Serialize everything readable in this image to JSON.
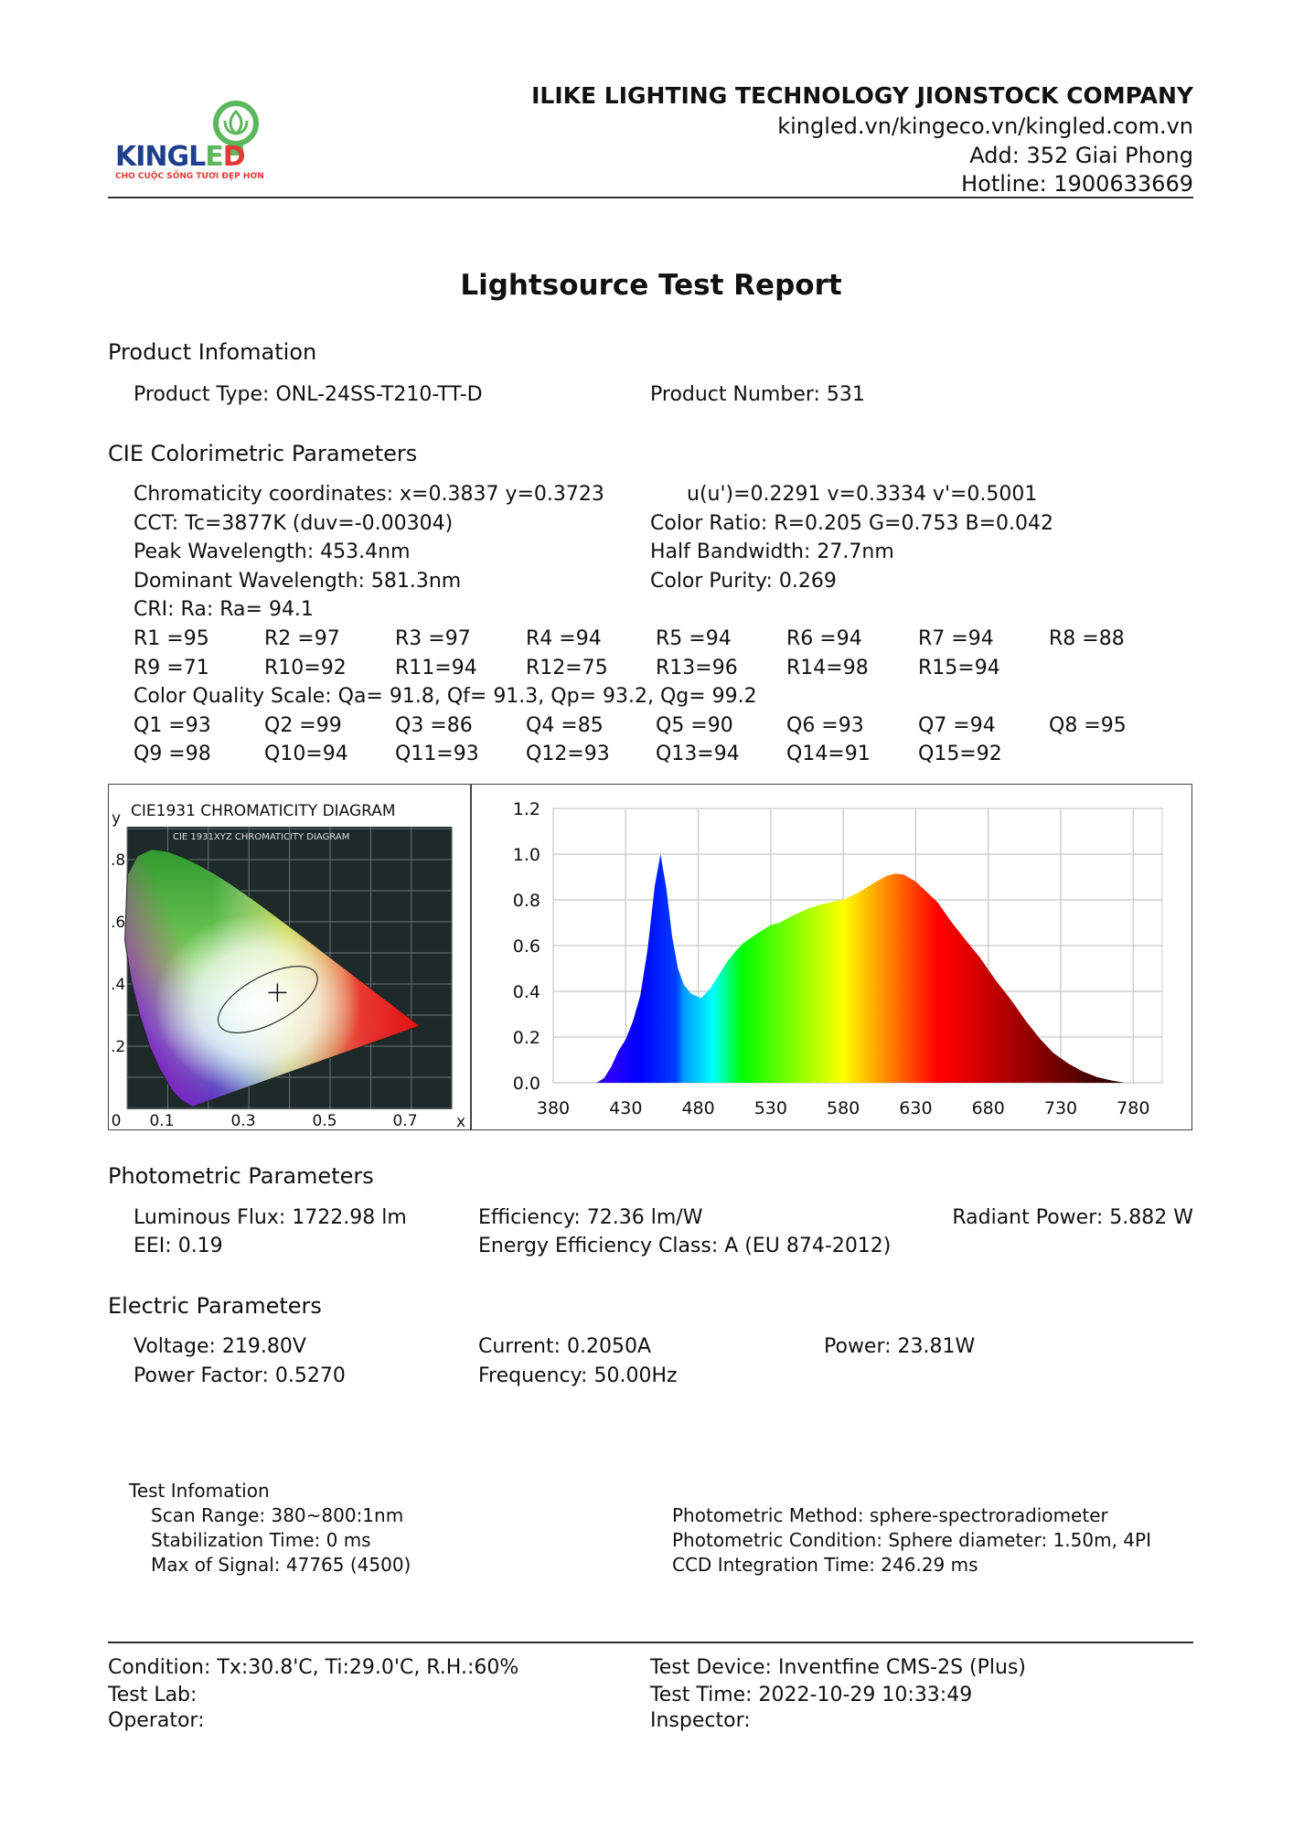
{
  "header": {
    "logo": {
      "brand": "KINGLED",
      "tagline": "CHO CUỘC SỐNG TƯƠI ĐẸP HƠN",
      "brand_color": "#1f3f8f",
      "accent_color": "#e53935",
      "bulb_color": "#5cb85c"
    },
    "company": "ILIKE LIGHTING TECHNOLOGY JIONSTOCK COMPANY",
    "websites": "kingled.vn/kingeco.vn/kingled.com.vn",
    "address": "Add: 352 Giai Phong",
    "hotline": "Hotline: 1900633669"
  },
  "title": "Lightsource Test Report",
  "product": {
    "heading": "Product Infomation",
    "type": "Product Type: ONL-24SS-T210-TT-D",
    "number": "Product Number: 531"
  },
  "cie": {
    "heading": "CIE Colorimetric Parameters",
    "chromaticity": "Chromaticity coordinates: x=0.3837 y=0.3723",
    "uv": "u(u')=0.2291 v=0.3334 v'=0.5001",
    "cct": "CCT: Tc=3877K (duv=-0.00304)",
    "color_ratio": "Color Ratio: R=0.205  G=0.753  B=0.042",
    "peak": "Peak Wavelength: 453.4nm",
    "half_bandwidth": "Half Bandwidth: 27.7nm",
    "dominant": "Dominant Wavelength: 581.3nm",
    "purity": "Color Purity: 0.269",
    "cri": "CRI: Ra: Ra= 94.1",
    "r_row1": [
      "R1 =95",
      "R2 =97",
      "R3 =97",
      "R4 =94",
      "R5 =94",
      "R6 =94",
      "R7 =94",
      "R8 =88"
    ],
    "r_row2": [
      "R9 =71",
      "R10=92",
      "R11=94",
      "R12=75",
      "R13=96",
      "R14=98",
      "R15=94"
    ],
    "cqs": "Color Quality Scale: Qa= 91.8, Qf= 91.3, Qp= 93.2, Qg= 99.2",
    "q_row1": [
      "Q1 =93",
      "Q2 =99",
      "Q3 =86",
      "Q4 =85",
      "Q5 =90",
      "Q6 =93",
      "Q7 =94",
      "Q8 =95"
    ],
    "q_row2": [
      "Q9 =98",
      "Q10=94",
      "Q11=93",
      "Q12=93",
      "Q13=94",
      "Q14=91",
      "Q15=92"
    ]
  },
  "cie_diagram": {
    "title": "CIE1931 CHROMATICITY DIAGRAM",
    "inner_title": "CIE 1931XYZ CHROMATICITY DIAGRAM",
    "y_label": "y",
    "x_label": "x",
    "y_ticks": [
      ".8",
      ".6",
      ".4",
      ".2"
    ],
    "x_ticks": [
      "0",
      "0.1",
      "0.3",
      "0.5",
      "0.7"
    ],
    "point": {
      "x": 0.3837,
      "y": 0.3723
    }
  },
  "chart_data": {
    "type": "area",
    "title": "",
    "xlabel": "",
    "ylabel": "",
    "xlim": [
      380,
      800
    ],
    "ylim": [
      0,
      1.2
    ],
    "grid": true,
    "x_ticks": [
      "380",
      "430",
      "480",
      "530",
      "580",
      "630",
      "680",
      "730",
      "780"
    ],
    "y_ticks": [
      "1.2",
      "1.0",
      "0.8",
      "0.6",
      "0.4",
      "0.2",
      "0.0"
    ],
    "fill": "spectral-rainbow",
    "x": [
      380,
      405,
      410,
      415,
      420,
      425,
      430,
      435,
      440,
      445,
      450,
      454,
      458,
      462,
      466,
      470,
      475,
      482,
      488,
      495,
      500,
      505,
      511,
      520,
      530,
      536,
      545,
      555,
      565,
      575,
      580,
      590,
      600,
      610,
      616,
      622,
      630,
      635,
      640,
      645,
      655,
      665,
      674,
      685,
      696,
      706,
      716,
      725,
      735,
      745,
      755,
      765,
      774,
      780,
      800
    ],
    "values": [
      0,
      0,
      0,
      0.02,
      0.07,
      0.14,
      0.19,
      0.27,
      0.38,
      0.58,
      0.86,
      1.0,
      0.85,
      0.64,
      0.5,
      0.43,
      0.39,
      0.37,
      0.41,
      0.48,
      0.53,
      0.57,
      0.61,
      0.65,
      0.69,
      0.7,
      0.73,
      0.76,
      0.78,
      0.795,
      0.8,
      0.83,
      0.87,
      0.905,
      0.915,
      0.91,
      0.88,
      0.85,
      0.82,
      0.79,
      0.7,
      0.62,
      0.55,
      0.45,
      0.36,
      0.27,
      0.19,
      0.13,
      0.085,
      0.05,
      0.025,
      0.01,
      0.0,
      0,
      0
    ]
  },
  "photometric": {
    "heading": "Photometric Parameters",
    "flux": "Luminous Flux: 1722.98 lm",
    "efficiency": "Efficiency: 72.36 lm/W",
    "radiant": "Radiant Power: 5.882 W",
    "eei": "EEI:  0.19",
    "class": "Energy Efficiency Class: A (EU 874-2012)"
  },
  "electric": {
    "heading": "Electric Parameters",
    "voltage": "Voltage: 219.80V",
    "current": "Current: 0.2050A",
    "power": "Power: 23.81W",
    "pf": "Power Factor: 0.5270",
    "frequency": "Frequency: 50.00Hz"
  },
  "test_info": {
    "heading": "Test Infomation",
    "scan": "Scan Range: 380~800:1nm",
    "stabilization": "Stabilization Time: 0 ms",
    "max_signal": "Max of Signal: 47765 (4500)",
    "method": "Photometric Method: sphere-spectroradiometer",
    "condition": "Photometric Condition: Sphere diameter: 1.50m, 4PI",
    "ccd": "CCD Integration Time: 246.29 ms"
  },
  "footer": {
    "condition": "Condition: Tx:30.8'C, Ti:29.0'C, R.H.:60%",
    "device": "Test Device: Inventfine CMS-2S (Plus)",
    "lab": "Test Lab:",
    "time": "Test Time: 2022-10-29 10:33:49",
    "operator": "Operator:",
    "inspector": "Inspector:"
  }
}
